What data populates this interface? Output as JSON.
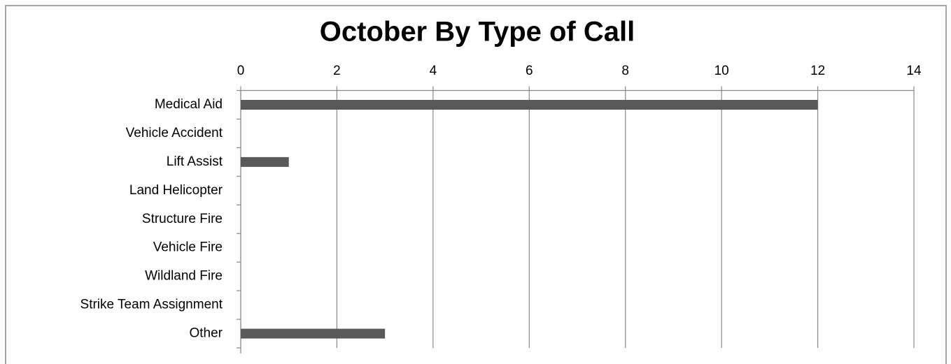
{
  "chart_data": {
    "type": "bar",
    "title": "October By Type of Call",
    "categories": [
      "Medical Aid",
      "Vehicle Accident",
      "Lift Assist",
      "Land Helicopter",
      "Structure Fire",
      "Vehicle Fire",
      "Wildland Fire",
      "Strike Team Assignment",
      "Other"
    ],
    "values": [
      12,
      0,
      1,
      0,
      0,
      0,
      0,
      0,
      3
    ],
    "color": "#595959",
    "xlim": [
      0,
      14
    ],
    "xticks": [
      0,
      2,
      4,
      6,
      8,
      10,
      12,
      14
    ],
    "grid": true
  }
}
